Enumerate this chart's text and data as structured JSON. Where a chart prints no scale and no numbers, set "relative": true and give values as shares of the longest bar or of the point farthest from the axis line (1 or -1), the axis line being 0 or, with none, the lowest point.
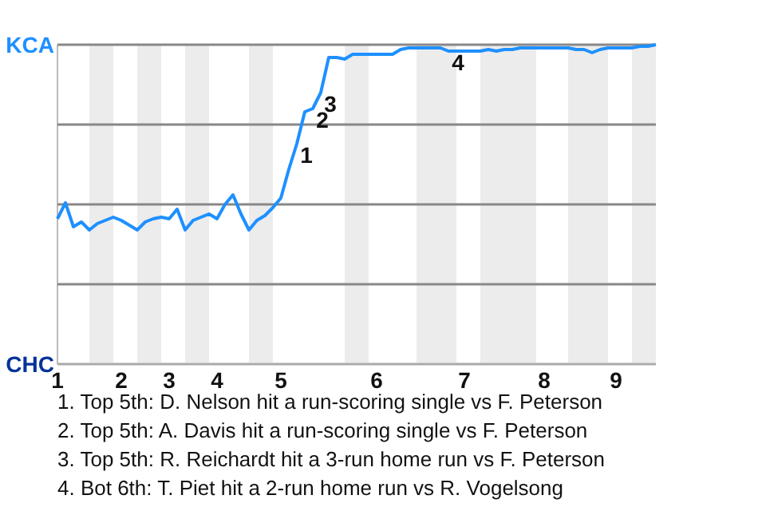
{
  "chart_data": {
    "type": "line",
    "relative": true,
    "categories": [
      "1",
      null,
      null,
      null,
      null,
      null,
      null,
      null,
      "2",
      null,
      null,
      null,
      null,
      null,
      "3",
      null,
      null,
      null,
      null,
      null,
      "4",
      null,
      null,
      null,
      null,
      null,
      null,
      null,
      "5",
      null,
      null,
      null,
      null,
      null,
      null,
      null,
      null,
      null,
      null,
      null,
      "6",
      null,
      null,
      null,
      null,
      null,
      null,
      null,
      null,
      null,
      null,
      "7",
      null,
      null,
      null,
      null,
      null,
      null,
      null,
      null,
      null,
      "8",
      null,
      null,
      null,
      null,
      null,
      null,
      null,
      null,
      "9",
      null,
      null,
      null,
      null,
      null
    ],
    "series": [
      {
        "color": "#1e90ff",
        "values": [
          0.455,
          0.505,
          0.43,
          0.445,
          0.42,
          0.44,
          0.45,
          0.46,
          0.45,
          0.435,
          0.42,
          0.445,
          0.455,
          0.46,
          0.455,
          0.485,
          0.42,
          0.45,
          0.46,
          0.47,
          0.455,
          0.5,
          0.53,
          0.47,
          0.42,
          0.45,
          0.465,
          0.49,
          0.52,
          0.61,
          0.69,
          0.79,
          0.8,
          0.85,
          0.96,
          0.96,
          0.955,
          0.97,
          0.97,
          0.97,
          0.97,
          0.97,
          0.97,
          0.985,
          0.99,
          0.99,
          0.99,
          0.99,
          0.99,
          0.98,
          0.98,
          0.98,
          0.98,
          0.98,
          0.985,
          0.98,
          0.985,
          0.985,
          0.99,
          0.99,
          0.99,
          0.99,
          0.99,
          0.99,
          0.99,
          0.985,
          0.985,
          0.975,
          0.985,
          0.99,
          0.99,
          0.99,
          0.99,
          0.995,
          0.995,
          1.0
        ]
      }
    ],
    "marker": "none",
    "line_style": "solid",
    "ref_lines": [
      {
        "axis": "y",
        "value": 1,
        "label": "KCA",
        "color": "#888888"
      },
      {
        "axis": "y",
        "value": 0.75,
        "color": "#888888"
      },
      {
        "axis": "y",
        "value": 0.5,
        "color": "#888888"
      },
      {
        "axis": "y",
        "value": 0.25,
        "color": "#888888"
      }
    ],
    "annotations": [
      {
        "text": "1",
        "y": 0.69
      },
      {
        "text": "2",
        "y": 0.8
      },
      {
        "text": "3",
        "y": 0.85
      },
      {
        "text": "4",
        "y": 0.98
      },
      "CHC",
      "1. Top 5th: D. Nelson hit a run-scoring single vs F. Peterson",
      "2. Top 5th: A. Davis hit a run-scoring single vs F. Peterson",
      "3. Top 5th: R. Reichardt hit a 3-run home run vs F. Peterson",
      "4. Bot 6th: T. Piet hit a 2-run home run vs R. Vogelsong"
    ]
  }
}
